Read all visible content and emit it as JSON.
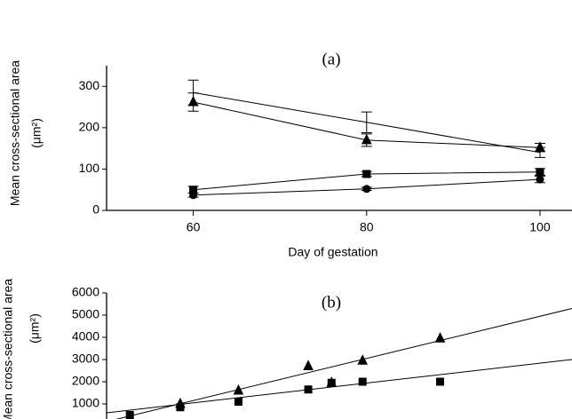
{
  "chart_data": [
    {
      "type": "line",
      "title": "(a)",
      "x_label": "Day of gestation",
      "y_label": [
        "Mean cross-sectional area",
        "(μm²)"
      ],
      "x": [
        60,
        80,
        100
      ],
      "xlim": [
        50,
        105
      ],
      "xticks": [
        60,
        80,
        100
      ],
      "ylim": [
        0,
        350
      ],
      "yticks": [
        0,
        100,
        200,
        300
      ],
      "color": "#000000",
      "series": [
        {
          "marker": "none",
          "values": [
            285,
            213,
            140
          ],
          "errors": [
            30,
            25,
            12
          ]
        },
        {
          "marker": "triangle",
          "values": [
            262,
            170,
            152
          ],
          "errors": [
            22,
            15,
            10
          ]
        },
        {
          "marker": "square",
          "values": [
            50,
            88,
            93
          ],
          "errors": [
            8,
            6,
            8
          ]
        },
        {
          "marker": "circle",
          "values": [
            37,
            52,
            75
          ],
          "errors": [
            5,
            4,
            8
          ]
        }
      ]
    },
    {
      "type": "scatter",
      "title": "(b)",
      "y_label": [
        "Mean cross-sectional area",
        "(μm²)"
      ],
      "xlim": [
        30,
        150
      ],
      "ylim": [
        0,
        6000
      ],
      "yticks": [
        1000,
        2000,
        3000,
        4000,
        5000,
        6000
      ],
      "color": "#000000",
      "series": [
        {
          "marker": "triangle",
          "x": [
            36,
            49,
            64,
            82,
            88,
            96,
            116
          ],
          "values": [
            400,
            1000,
            1600,
            2700,
            1950,
            2950,
            3950
          ]
        },
        {
          "marker": "square",
          "x": [
            36,
            49,
            64,
            82,
            88,
            96,
            116
          ],
          "values": [
            500,
            850,
            1100,
            1650,
            1950,
            2000,
            2000
          ]
        }
      ],
      "trend_lines": [
        {
          "x": [
            30,
            150
          ],
          "values": [
            200,
            5300
          ]
        },
        {
          "x": [
            30,
            150
          ],
          "values": [
            600,
            3000
          ]
        }
      ]
    }
  ]
}
